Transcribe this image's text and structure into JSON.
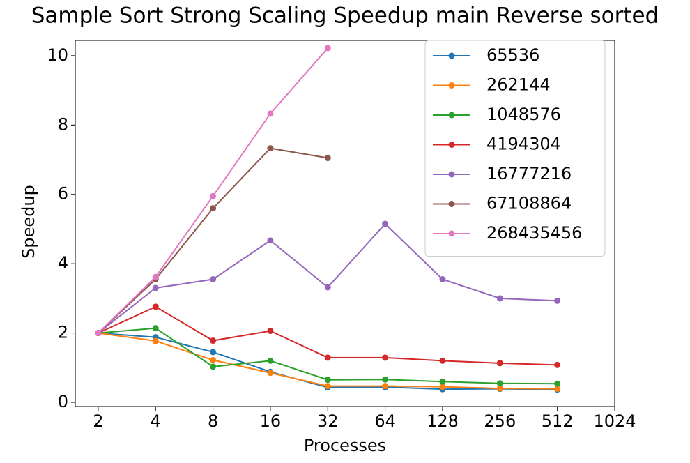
{
  "chart_data": {
    "type": "line",
    "title": "Sample Sort Strong Scaling Speedup main Reverse sorted",
    "xlabel": "Processes",
    "ylabel": "Speedup",
    "x": [
      2,
      4,
      8,
      16,
      32,
      64,
      128,
      256,
      512
    ],
    "xscale": "log2",
    "xlim": [
      1.516,
      1024
    ],
    "xticks": [
      2,
      4,
      8,
      16,
      32,
      64,
      128,
      256,
      512,
      1024
    ],
    "ylim": [
      -0.12,
      10.44
    ],
    "yticks": [
      0,
      2,
      4,
      6,
      8,
      10
    ],
    "legend": "upper right",
    "series": [
      {
        "name": "65536",
        "color": "#1f77b4",
        "values": [
          2,
          1.88,
          1.45,
          0.88,
          0.43,
          0.44,
          0.38,
          0.39,
          0.37
        ]
      },
      {
        "name": "262144",
        "color": "#ff7f0e",
        "values": [
          2,
          1.77,
          1.22,
          0.85,
          0.47,
          0.47,
          0.45,
          0.4,
          0.39
        ]
      },
      {
        "name": "1048576",
        "color": "#2ca02c",
        "values": [
          2,
          2.14,
          1.03,
          1.2,
          0.65,
          0.66,
          0.6,
          0.55,
          0.54
        ]
      },
      {
        "name": "4194304",
        "color": "#d62728",
        "values": [
          2,
          2.76,
          1.78,
          2.06,
          1.29,
          1.29,
          1.2,
          1.13,
          1.08
        ]
      },
      {
        "name": "16777216",
        "color": "#9467bd",
        "values": [
          2,
          3.3,
          3.55,
          4.67,
          3.32,
          5.15,
          3.55,
          3.0,
          2.93
        ]
      },
      {
        "name": "67108864",
        "color": "#8c564b",
        "values": [
          2,
          3.55,
          5.6,
          7.33,
          7.05,
          null,
          null,
          null,
          null
        ]
      },
      {
        "name": "268435456",
        "color": "#e377c2",
        "values": [
          2,
          3.62,
          5.95,
          8.33,
          10.22,
          null,
          null,
          null,
          null
        ]
      }
    ]
  }
}
